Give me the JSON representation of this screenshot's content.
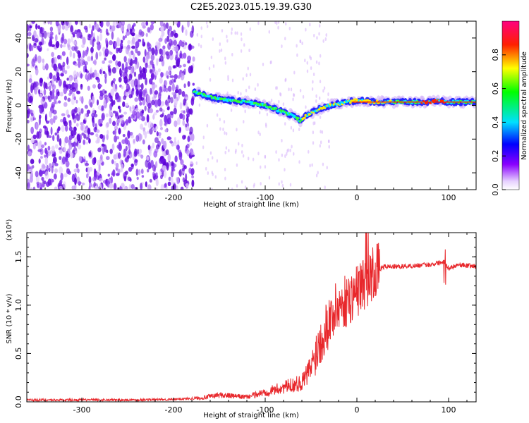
{
  "title": "C2E5.2023.015.19.39.G30",
  "chart_data": [
    {
      "type": "heatmap",
      "name": "spectrogram",
      "xlabel": "Height of straight line (km)",
      "ylabel": "Frequency (Hz)",
      "xlim": [
        -360,
        130
      ],
      "ylim": [
        -50,
        50
      ],
      "xticks": [
        -300,
        -200,
        -100,
        0,
        100
      ],
      "yticks": [
        -40,
        -20,
        0,
        20,
        40
      ],
      "colorbar": {
        "label": "Normalized spectral amplitude",
        "ticks": [
          0.0,
          0.2,
          0.4,
          0.6,
          0.8
        ],
        "range": [
          0,
          1
        ]
      },
      "noise_region": {
        "x": [
          -360,
          -178
        ],
        "y": [
          -50,
          50
        ]
      },
      "signal_track": {
        "x": [
          -178,
          -160,
          -140,
          -120,
          -100,
          -85,
          -70,
          -62,
          -55,
          -48,
          -40,
          -30,
          -20,
          -10,
          0,
          20,
          40,
          60,
          80,
          90,
          100,
          130
        ],
        "y": [
          8,
          5,
          3,
          2,
          0,
          -3,
          -6,
          -9,
          -6,
          -4,
          -2,
          0,
          1,
          2,
          3,
          2,
          2,
          2,
          2,
          3,
          2,
          2
        ]
      }
    },
    {
      "type": "line",
      "name": "snr",
      "xlabel": "Height of straight line (km)",
      "ylabel": "SNR (10 * v/v)",
      "scale_note": "(x10⁴)",
      "xlim": [
        -360,
        130
      ],
      "ylim": [
        0,
        1.75
      ],
      "xticks": [
        -300,
        -200,
        -100,
        0,
        100
      ],
      "yticks": [
        0.0,
        0.5,
        1.0,
        1.5
      ],
      "series": [
        {
          "name": "SNR",
          "color": "#e8272b",
          "x": [
            -360,
            -300,
            -250,
            -200,
            -170,
            -150,
            -120,
            -100,
            -80,
            -60,
            -50,
            -40,
            -30,
            -20,
            -10,
            0,
            10,
            20,
            30,
            50,
            80,
            95,
            100,
            110,
            130
          ],
          "y": [
            0.02,
            0.02,
            0.02,
            0.025,
            0.04,
            0.07,
            0.05,
            0.1,
            0.15,
            0.2,
            0.35,
            0.65,
            0.85,
            1.0,
            1.05,
            1.15,
            1.25,
            1.35,
            1.4,
            1.4,
            1.42,
            1.45,
            1.38,
            1.42,
            1.4
          ]
        }
      ]
    }
  ]
}
